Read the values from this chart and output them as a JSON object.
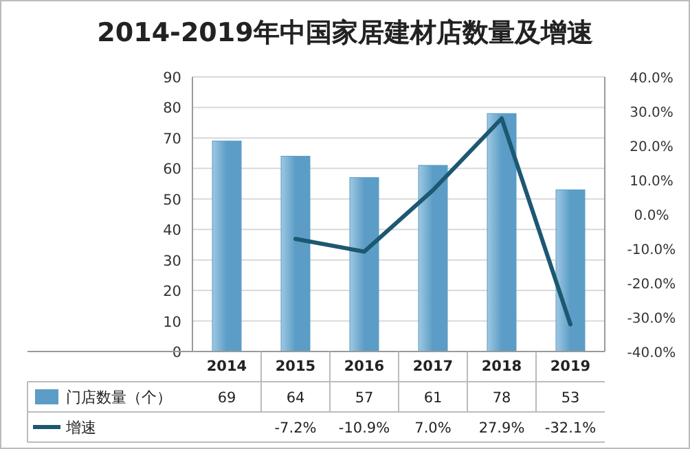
{
  "chart_data": {
    "type": "bar",
    "title": "2014-2019年中国家居建材店数量及增速",
    "categories": [
      "2014",
      "2015",
      "2016",
      "2017",
      "2018",
      "2019"
    ],
    "series": [
      {
        "name": "门店数量（个）",
        "color": "#5b9dc6",
        "values": [
          69,
          64,
          57,
          61,
          78,
          53
        ],
        "value_labels": [
          "69",
          "64",
          "57",
          "61",
          "78",
          "53"
        ]
      },
      {
        "name": "增速",
        "type": "line",
        "axis": "y2",
        "color": "#1d5872",
        "values": [
          null,
          -7.2,
          -10.9,
          7.0,
          27.9,
          -32.1
        ],
        "value_labels": [
          null,
          "-7.2%",
          "-10.9%",
          "7.0%",
          "27.9%",
          "-32.1%"
        ]
      }
    ],
    "ylim": [
      0,
      90
    ],
    "yticks": [
      0,
      10,
      20,
      30,
      40,
      50,
      60,
      70,
      80,
      90
    ],
    "y2lim": [
      -40,
      40
    ],
    "y2ticks": [
      {
        "value": -40,
        "label": "-40.0%"
      },
      {
        "value": -30,
        "label": "-30.0%"
      },
      {
        "value": -20,
        "label": "-20.0%"
      },
      {
        "value": -10,
        "label": "-10.0%"
      },
      {
        "value": 0,
        "label": "0.0%"
      },
      {
        "value": 10,
        "label": "10.0%"
      },
      {
        "value": 20,
        "label": "20.0%"
      },
      {
        "value": 30,
        "label": "30.0%"
      },
      {
        "value": 40,
        "label": "40.0%"
      }
    ],
    "grid": "y",
    "legend": "bottom",
    "line_style": "solid",
    "marker": "none"
  }
}
